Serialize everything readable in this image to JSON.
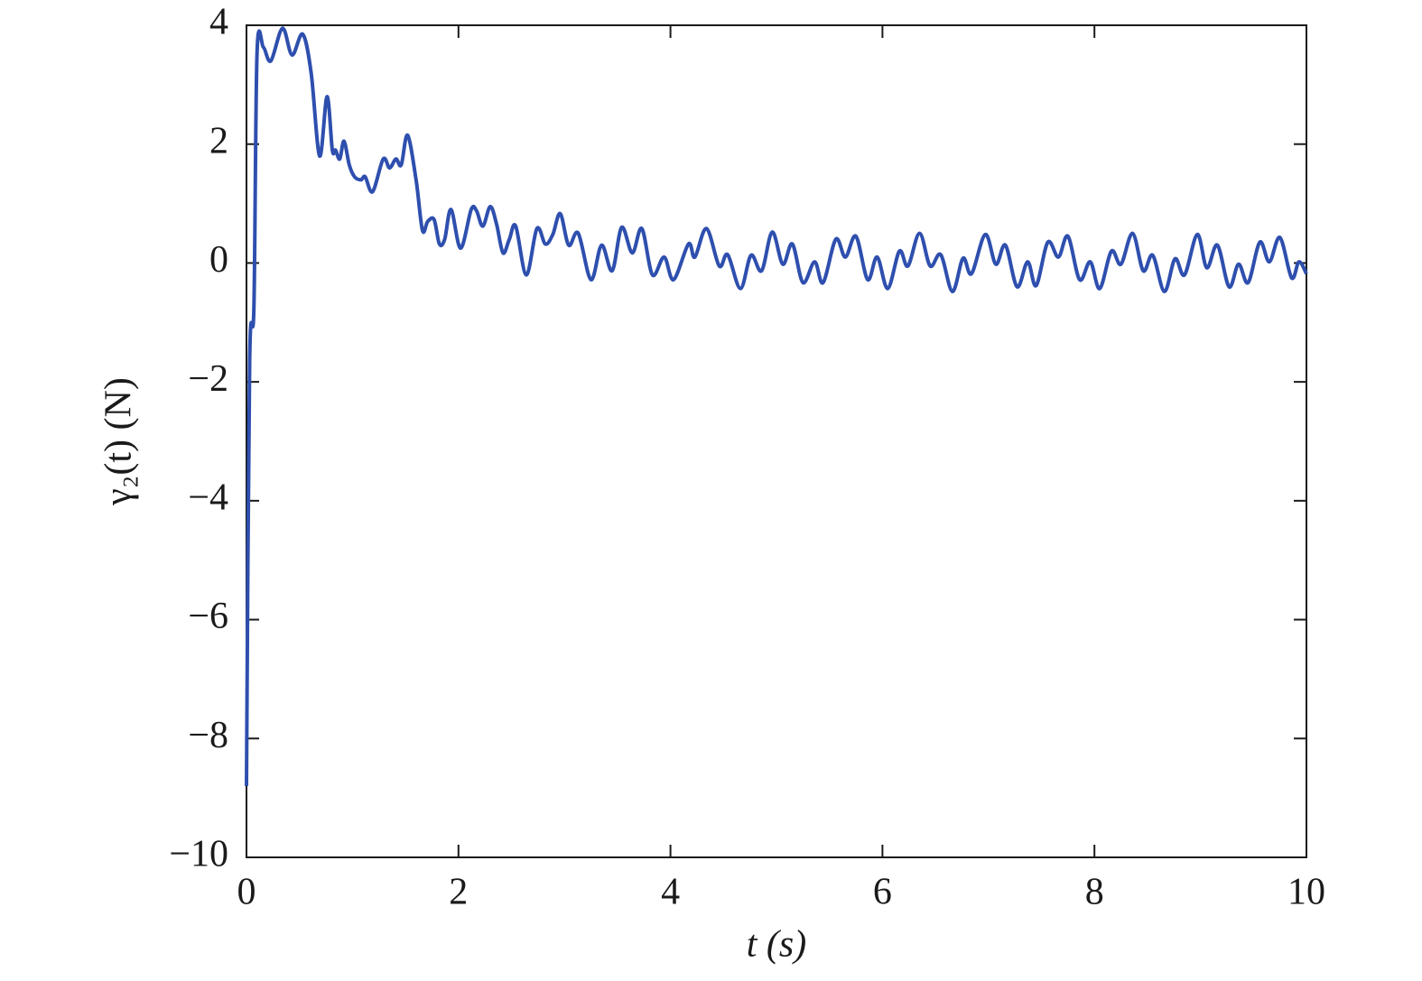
{
  "chart_data": {
    "type": "line",
    "xlabel": "t (s)",
    "ylabel": "γ₂(t) (N)",
    "xlim": [
      0,
      10
    ],
    "ylim": [
      -10,
      4
    ],
    "xticks": [
      0,
      2,
      4,
      6,
      8,
      10
    ],
    "yticks": [
      {
        "value": -10,
        "label": "−10"
      },
      {
        "value": -8,
        "label": "−8"
      },
      {
        "value": -6,
        "label": "−6"
      },
      {
        "value": -4,
        "label": "−4"
      },
      {
        "value": -2,
        "label": "−2"
      },
      0,
      2,
      4
    ],
    "grid": false,
    "series": [
      {
        "color": "#2e4fae",
        "x": [
          0,
          0.03,
          0.07,
          0.1,
          0.16,
          0.23,
          0.34,
          0.43,
          0.53,
          0.61,
          0.69,
          0.76,
          0.81,
          0.84,
          0.88,
          0.92,
          0.97,
          1.02,
          1.08,
          1.12,
          1.19,
          1.29,
          1.35,
          1.41,
          1.46,
          1.52,
          1.6,
          1.66,
          1.71,
          1.77,
          1.82,
          1.87,
          1.93,
          2.02,
          2.12,
          2.17,
          2.23,
          2.3,
          2.36,
          2.42,
          2.48,
          2.54,
          2.64,
          2.74,
          2.82,
          2.89,
          2.96,
          3.04,
          3.13,
          3.25,
          3.35,
          3.45,
          3.54,
          3.64,
          3.73,
          3.83,
          3.94,
          4.03,
          4.17,
          4.23,
          4.34,
          4.46,
          4.54,
          4.66,
          4.76,
          4.86,
          4.96,
          5.06,
          5.15,
          5.25,
          5.36,
          5.44,
          5.56,
          5.65,
          5.75,
          5.86,
          5.95,
          6.05,
          6.16,
          6.24,
          6.35,
          6.45,
          6.55,
          6.66,
          6.76,
          6.84,
          6.97,
          7.07,
          7.16,
          7.27,
          7.37,
          7.45,
          7.56,
          7.66,
          7.75,
          7.86,
          7.96,
          8.05,
          8.16,
          8.25,
          8.36,
          8.46,
          8.55,
          8.66,
          8.76,
          8.85,
          8.97,
          9.06,
          9.16,
          9.27,
          9.36,
          9.45,
          9.56,
          9.65,
          9.75,
          9.86,
          9.93,
          10
        ],
        "values": [
          -8.8,
          -1.65,
          -0.75,
          3.55,
          3.63,
          3.4,
          3.95,
          3.5,
          3.85,
          3.2,
          1.8,
          2.8,
          1.9,
          1.9,
          1.75,
          2.05,
          1.65,
          1.45,
          1.4,
          1.45,
          1.2,
          1.75,
          1.6,
          1.75,
          1.65,
          2.15,
          1.4,
          0.55,
          0.7,
          0.73,
          0.32,
          0.4,
          0.9,
          0.25,
          0.9,
          0.88,
          0.62,
          0.95,
          0.65,
          0.17,
          0.4,
          0.62,
          -0.2,
          0.58,
          0.32,
          0.48,
          0.83,
          0.3,
          0.5,
          -0.28,
          0.3,
          -0.13,
          0.6,
          0.17,
          0.58,
          -0.2,
          0.1,
          -0.28,
          0.32,
          0.1,
          0.58,
          -0.05,
          0.14,
          -0.43,
          0.13,
          -0.13,
          0.52,
          -0.02,
          0.32,
          -0.33,
          0.02,
          -0.33,
          0.4,
          0.1,
          0.45,
          -0.28,
          0.1,
          -0.43,
          0.2,
          -0.05,
          0.5,
          -0.05,
          0.14,
          -0.48,
          0.08,
          -0.18,
          0.48,
          -0.02,
          0.3,
          -0.4,
          0.02,
          -0.38,
          0.35,
          0.1,
          0.45,
          -0.28,
          0.02,
          -0.43,
          0.2,
          -0.02,
          0.5,
          -0.13,
          0.13,
          -0.48,
          0.07,
          -0.2,
          0.48,
          -0.08,
          0.3,
          -0.4,
          -0.02,
          -0.33,
          0.35,
          0.02,
          0.43,
          -0.25,
          0.02,
          -0.18
        ]
      }
    ]
  }
}
